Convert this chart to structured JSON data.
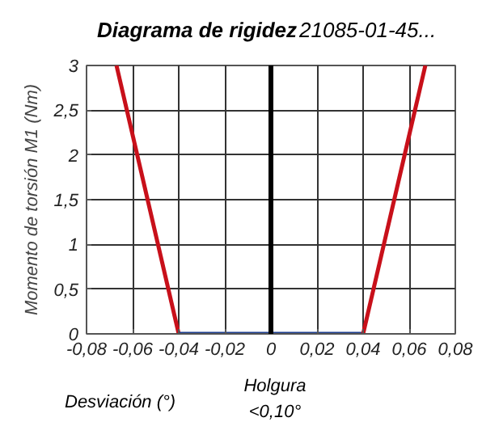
{
  "chart_data": {
    "type": "line",
    "title": "Diagrama de rigidez",
    "subtitle": "21085-01-45...",
    "ylabel": "Momento de torsión M1 (Nm)",
    "annotations": [
      "Desviación (°)",
      "Holgura <0,10°"
    ],
    "series": [
      {
        "color": "#c8101a",
        "x": [
          -0.067,
          -0.04
        ],
        "values": [
          3,
          0
        ]
      },
      {
        "color": "#1f3f8f",
        "x": [
          -0.04,
          0.04
        ],
        "values": [
          0,
          0
        ]
      },
      {
        "color": "#c8101a",
        "x": [
          0.04,
          0.067
        ],
        "values": [
          0,
          3
        ]
      }
    ],
    "ref_lines": [
      {
        "axis": "x",
        "value": 0,
        "color": "#000000"
      }
    ],
    "xlim": [
      -0.08,
      0.08
    ],
    "xticks": [
      {
        "value": -0.08,
        "label": "-0,08"
      },
      {
        "value": -0.06,
        "label": "-0,06"
      },
      {
        "value": -0.04,
        "label": "-0,04"
      },
      {
        "value": -0.02,
        "label": "-0,02"
      },
      0,
      {
        "value": 0.02,
        "label": "0,02"
      },
      {
        "value": 0.04,
        "label": "0,04"
      },
      {
        "value": 0.06,
        "label": "0,06"
      },
      {
        "value": 0.08,
        "label": "0,08"
      }
    ],
    "ylim": [
      0,
      3
    ],
    "yticks": [
      0,
      {
        "value": 0.5,
        "label": "0,5"
      },
      1,
      {
        "value": 1.5,
        "label": "1,5"
      },
      2,
      {
        "value": 2.5,
        "label": "2,5"
      },
      3
    ],
    "grid": true,
    "marker": "none",
    "line_style": "solid"
  }
}
